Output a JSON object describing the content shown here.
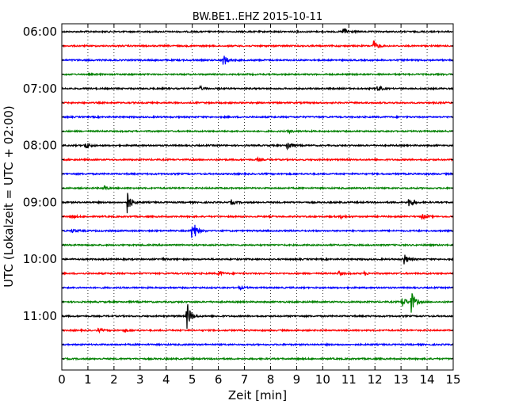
{
  "chart_data": {
    "type": "line",
    "title": "BW.BE1..EHZ 2015-10-11",
    "xlabel": "Zeit  [min]",
    "ylabel": "UTC (Lokalzeit = UTC + 02:00)",
    "xlim": [
      0,
      15
    ],
    "x_ticks": [
      0,
      1,
      2,
      3,
      4,
      5,
      6,
      7,
      8,
      9,
      10,
      11,
      12,
      13,
      14,
      15
    ],
    "x_tick_labels": [
      "0",
      "1",
      "2",
      "3",
      "4",
      "5",
      "6",
      "7",
      "8",
      "9",
      "10",
      "11",
      "12",
      "13",
      "14",
      "15"
    ],
    "y_tick_labels": [
      "06:00",
      "07:00",
      "08:00",
      "09:00",
      "10:00",
      "11:00"
    ],
    "y_tick_trace_index": [
      0,
      4,
      8,
      12,
      16,
      20
    ],
    "grid": "vertical dotted",
    "trace_colors": [
      "#000000",
      "#ff0000",
      "#0000ff",
      "#008000"
    ],
    "trace_minutes": 15,
    "traces": [
      {
        "start": "06:00",
        "color": "#000000",
        "events": [
          {
            "t": 10.8,
            "amp": 6
          }
        ]
      },
      {
        "start": "06:15",
        "color": "#ff0000",
        "events": [
          {
            "t": 11.95,
            "amp": 7
          }
        ]
      },
      {
        "start": "06:30",
        "color": "#0000ff",
        "events": [
          {
            "t": 6.2,
            "amp": 8
          }
        ]
      },
      {
        "start": "06:45",
        "color": "#008000",
        "events": []
      },
      {
        "start": "07:00",
        "color": "#000000",
        "events": [
          {
            "t": 12.1,
            "amp": 4
          },
          {
            "t": 5.3,
            "amp": 2
          }
        ]
      },
      {
        "start": "07:15",
        "color": "#ff0000",
        "events": []
      },
      {
        "start": "07:30",
        "color": "#0000ff",
        "events": []
      },
      {
        "start": "07:45",
        "color": "#008000",
        "events": [
          {
            "t": 8.7,
            "amp": 2
          }
        ]
      },
      {
        "start": "08:00",
        "color": "#000000",
        "events": [
          {
            "t": 0.9,
            "amp": 5
          },
          {
            "t": 8.65,
            "amp": 7
          }
        ]
      },
      {
        "start": "08:15",
        "color": "#ff0000",
        "events": [
          {
            "t": 7.5,
            "amp": 2
          }
        ]
      },
      {
        "start": "08:30",
        "color": "#0000ff",
        "events": []
      },
      {
        "start": "08:45",
        "color": "#008000",
        "events": [
          {
            "t": 1.6,
            "amp": 3
          }
        ]
      },
      {
        "start": "09:00",
        "color": "#000000",
        "events": [
          {
            "t": 2.5,
            "amp": 16
          },
          {
            "t": 6.5,
            "amp": 3
          },
          {
            "t": 13.3,
            "amp": 6
          }
        ]
      },
      {
        "start": "09:15",
        "color": "#ff0000",
        "events": [
          {
            "t": 0.4,
            "amp": 2
          },
          {
            "t": 10.7,
            "amp": 2
          },
          {
            "start_note": "",
            "t": 13.8,
            "amp": 4
          }
        ]
      },
      {
        "start": "09:30",
        "color": "#0000ff",
        "events": [
          {
            "t": 5.0,
            "amp": 17
          },
          {
            "t": 0.4,
            "amp": 2
          }
        ]
      },
      {
        "start": "09:45",
        "color": "#008000",
        "events": []
      },
      {
        "start": "10:00",
        "color": "#000000",
        "events": [
          {
            "t": 13.1,
            "amp": 8
          },
          {
            "t": 3.8,
            "amp": 2
          }
        ]
      },
      {
        "start": "10:15",
        "color": "#ff0000",
        "events": [
          {
            "t": 6.0,
            "amp": 3
          },
          {
            "t": 10.6,
            "amp": 3
          },
          {
            "t": 11.6,
            "amp": 2
          }
        ]
      },
      {
        "start": "10:30",
        "color": "#0000ff",
        "events": [
          {
            "t": 6.8,
            "amp": 2
          }
        ]
      },
      {
        "start": "10:45",
        "color": "#008000",
        "events": [
          {
            "t": 13.4,
            "amp": 14
          },
          {
            "t": 13.05,
            "amp": 7
          }
        ]
      },
      {
        "start": "11:00",
        "color": "#000000",
        "events": [
          {
            "t": 4.8,
            "amp": 18
          }
        ]
      },
      {
        "start": "11:15",
        "color": "#ff0000",
        "events": [
          {
            "t": 1.4,
            "amp": 2
          },
          {
            "t": 2.4,
            "amp": 2
          }
        ]
      },
      {
        "start": "11:30",
        "color": "#0000ff",
        "events": []
      },
      {
        "start": "11:45",
        "color": "#008000",
        "events": []
      }
    ]
  }
}
